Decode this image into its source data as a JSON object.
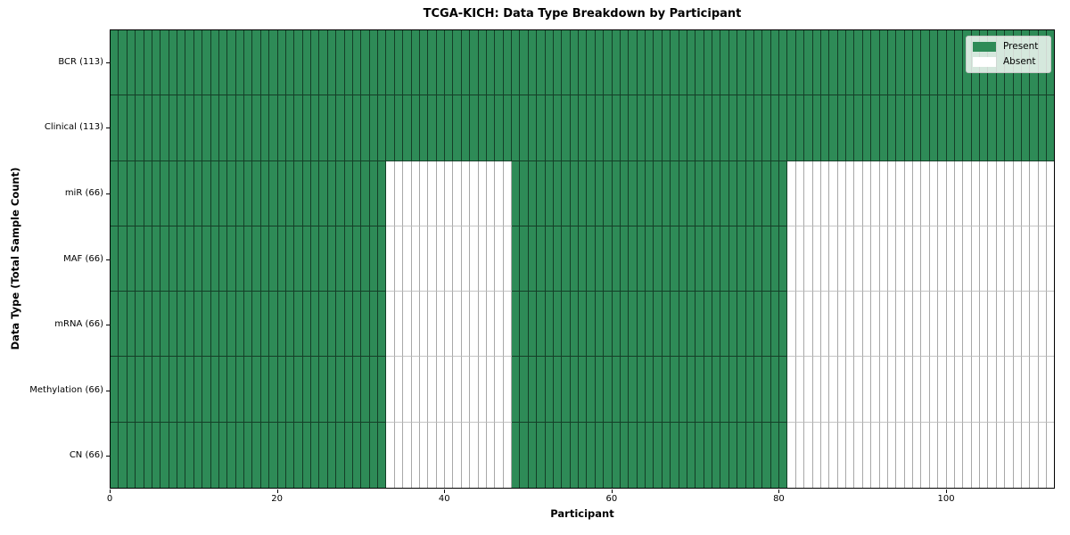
{
  "chart_data": {
    "type": "heatmap",
    "title": "TCGA-KICH: Data Type Breakdown by Participant",
    "xlabel": "Participant",
    "ylabel": "Data Type (Total Sample Count)",
    "x_range": [
      0,
      113
    ],
    "x_ticks": [
      0,
      20,
      40,
      60,
      80,
      100
    ],
    "n_participants": 113,
    "legend_position": "upper right",
    "legend_items": [
      {
        "label": "Present",
        "color": "#2e8b57"
      },
      {
        "label": "Absent",
        "color": "#ffffff"
      }
    ],
    "colors": {
      "present": "#2e8b57",
      "absent": "#ffffff"
    },
    "rows": [
      {
        "label": "BCR (113)",
        "data_type": "BCR",
        "sample_count": 113,
        "present_ranges": [
          [
            0,
            113
          ]
        ]
      },
      {
        "label": "Clinical (113)",
        "data_type": "Clinical",
        "sample_count": 113,
        "present_ranges": [
          [
            0,
            113
          ]
        ]
      },
      {
        "label": "miR (66)",
        "data_type": "miR",
        "sample_count": 66,
        "present_ranges": [
          [
            0,
            33
          ],
          [
            48,
            81
          ]
        ]
      },
      {
        "label": "MAF (66)",
        "data_type": "MAF",
        "sample_count": 66,
        "present_ranges": [
          [
            0,
            33
          ],
          [
            48,
            81
          ]
        ]
      },
      {
        "label": "mRNA (66)",
        "data_type": "mRNA",
        "sample_count": 66,
        "present_ranges": [
          [
            0,
            33
          ],
          [
            48,
            81
          ]
        ]
      },
      {
        "label": "Methylation (66)",
        "data_type": "Methylation",
        "sample_count": 66,
        "present_ranges": [
          [
            0,
            33
          ],
          [
            48,
            81
          ]
        ]
      },
      {
        "label": "CN (66)",
        "data_type": "CN",
        "sample_count": 66,
        "present_ranges": [
          [
            0,
            33
          ],
          [
            48,
            81
          ]
        ]
      }
    ]
  }
}
